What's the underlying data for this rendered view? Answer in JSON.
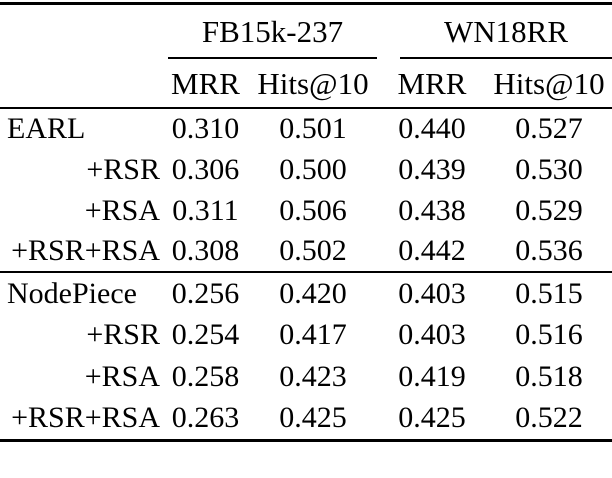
{
  "table": {
    "groups": [
      {
        "label": "FB15k-237"
      },
      {
        "label": "WN18RR"
      }
    ],
    "sub_headers": [
      "MRR",
      "Hits@10",
      "MRR",
      "Hits@10"
    ],
    "rows": [
      {
        "label": "EARL",
        "values": [
          "0.310",
          "0.501",
          "0.440",
          "0.527"
        ]
      },
      {
        "label": "+RSR",
        "values": [
          "0.306",
          "0.500",
          "0.439",
          "0.530"
        ]
      },
      {
        "label": "+RSA",
        "values": [
          "0.311",
          "0.506",
          "0.438",
          "0.529"
        ]
      },
      {
        "label": "+RSR+RSA",
        "values": [
          "0.308",
          "0.502",
          "0.442",
          "0.536"
        ]
      },
      {
        "label": "NodePiece",
        "values": [
          "0.256",
          "0.420",
          "0.403",
          "0.515"
        ]
      },
      {
        "label": "+RSR",
        "values": [
          "0.254",
          "0.417",
          "0.403",
          "0.516"
        ]
      },
      {
        "label": "+RSA",
        "values": [
          "0.258",
          "0.423",
          "0.419",
          "0.518"
        ]
      },
      {
        "label": "+RSR+RSA",
        "values": [
          "0.263",
          "0.425",
          "0.425",
          "0.522"
        ]
      }
    ],
    "colors": {
      "text": "#000000",
      "rule": "#000000",
      "background": "#ffffff"
    }
  }
}
